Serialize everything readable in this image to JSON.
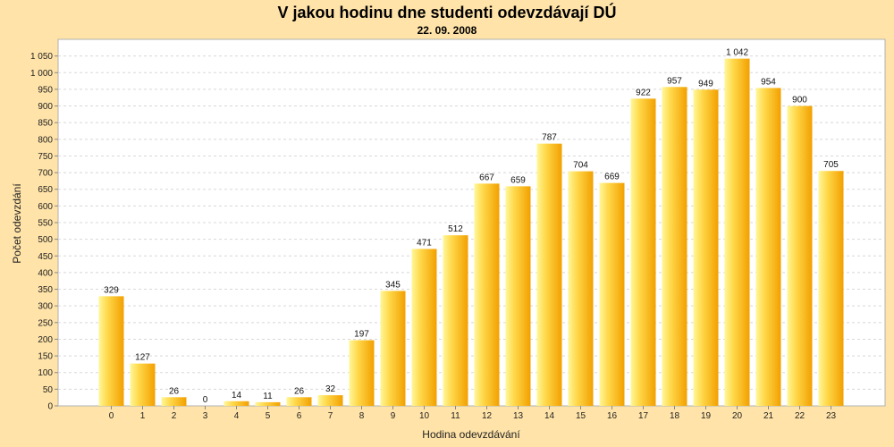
{
  "chart_data": {
    "type": "bar",
    "title": "V jakou hodinu dne studenti odevzdávají DÚ",
    "subtitle": "22. 09. 2008",
    "xlabel": "Hodina odevzdávání",
    "ylabel": "Počet odevzdání",
    "categories": [
      "0",
      "1",
      "2",
      "3",
      "4",
      "5",
      "6",
      "7",
      "8",
      "9",
      "10",
      "11",
      "12",
      "13",
      "14",
      "15",
      "16",
      "17",
      "18",
      "19",
      "20",
      "21",
      "22",
      "23"
    ],
    "values": [
      329,
      127,
      26,
      0,
      14,
      11,
      26,
      32,
      197,
      345,
      471,
      512,
      667,
      659,
      787,
      704,
      669,
      922,
      957,
      949,
      1042,
      954,
      900,
      705
    ],
    "value_labels": [
      "329",
      "127",
      "26",
      "0",
      "14",
      "11",
      "26",
      "32",
      "197",
      "345",
      "471",
      "512",
      "667",
      "659",
      "787",
      "704",
      "669",
      "922",
      "957",
      "949",
      "1 042",
      "954",
      "900",
      "705"
    ],
    "y_ticks": [
      0,
      50,
      100,
      150,
      200,
      250,
      300,
      350,
      400,
      450,
      500,
      550,
      600,
      650,
      700,
      750,
      800,
      850,
      900,
      950,
      1000,
      1050
    ],
    "y_tick_labels": [
      "0",
      "50",
      "100",
      "150",
      "200",
      "250",
      "300",
      "350",
      "400",
      "450",
      "500",
      "550",
      "600",
      "650",
      "700",
      "750",
      "800",
      "850",
      "900",
      "950",
      "1 000",
      "1 050"
    ],
    "ylim": [
      0,
      1100
    ],
    "grid": true,
    "legend": "none",
    "colors": {
      "background": "#ffe3a8",
      "plot_background": "#ffffff",
      "bar_light": "#fff79a",
      "bar_dark": "#f2a000",
      "grid": "#d8d8d8"
    }
  }
}
